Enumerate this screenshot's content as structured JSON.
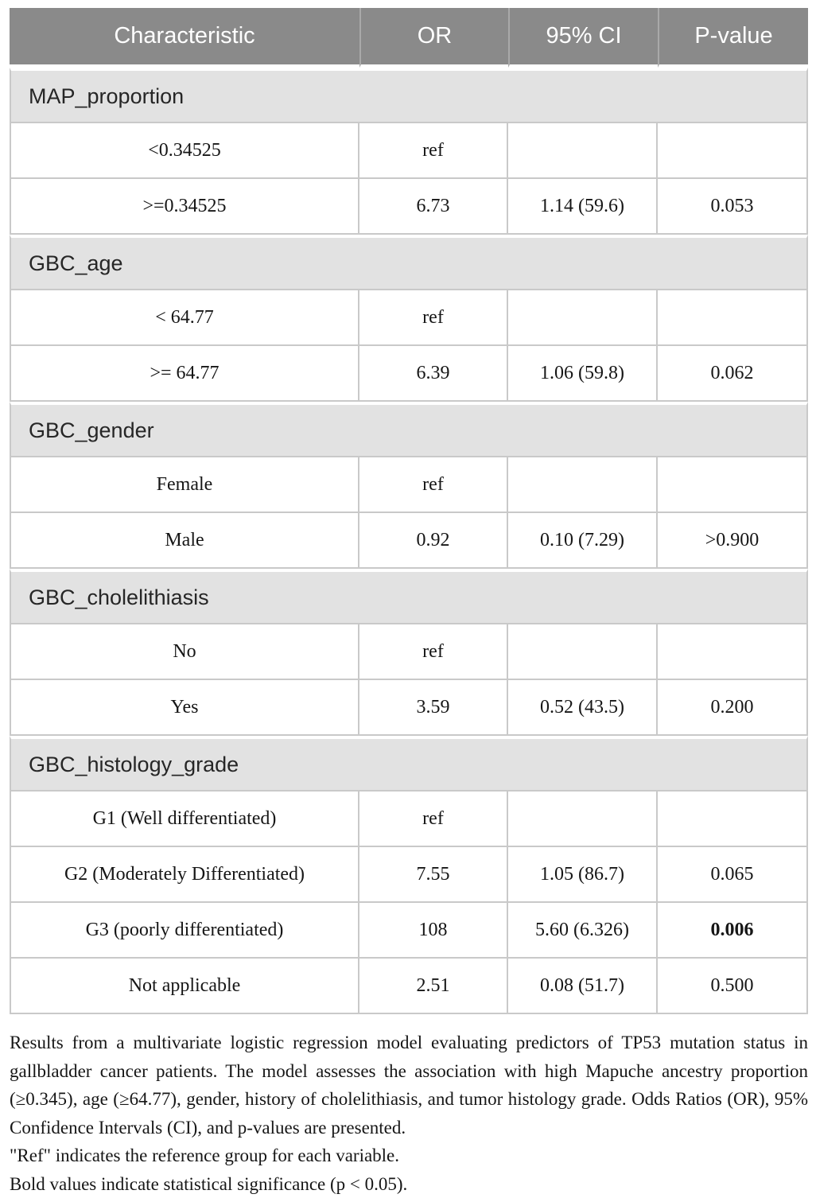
{
  "table": {
    "columns": [
      "Characteristic",
      "OR",
      "95% CI",
      "P-value"
    ],
    "sections": [
      {
        "label": "MAP_proportion",
        "rows": [
          {
            "characteristic": "<0.34525",
            "or": "ref",
            "ci": "",
            "p": "",
            "bold_p": false
          },
          {
            "characteristic": ">=0.34525",
            "or": "6.73",
            "ci": "1.14 (59.6)",
            "p": "0.053",
            "bold_p": false
          }
        ]
      },
      {
        "label": "GBC_age",
        "rows": [
          {
            "characteristic": "< 64.77",
            "or": "ref",
            "ci": "",
            "p": "",
            "bold_p": false
          },
          {
            "characteristic": ">= 64.77",
            "or": "6.39",
            "ci": "1.06 (59.8)",
            "p": "0.062",
            "bold_p": false
          }
        ]
      },
      {
        "label": "GBC_gender",
        "rows": [
          {
            "characteristic": "Female",
            "or": "ref",
            "ci": "",
            "p": "",
            "bold_p": false
          },
          {
            "characteristic": "Male",
            "or": "0.92",
            "ci": "0.10 (7.29)",
            "p": ">0.900",
            "bold_p": false
          }
        ]
      },
      {
        "label": "GBC_cholelithiasis",
        "rows": [
          {
            "characteristic": "No",
            "or": "ref",
            "ci": "",
            "p": "",
            "bold_p": false
          },
          {
            "characteristic": "Yes",
            "or": "3.59",
            "ci": "0.52 (43.5)",
            "p": "0.200",
            "bold_p": false
          }
        ]
      },
      {
        "label": "GBC_histology_grade",
        "rows": [
          {
            "characteristic": "G1 (Well differentiated)",
            "or": "ref",
            "ci": "",
            "p": "",
            "bold_p": false
          },
          {
            "characteristic": "G2 (Moderately Differentiated)",
            "or": "7.55",
            "ci": "1.05 (86.7)",
            "p": "0.065",
            "bold_p": false
          },
          {
            "characteristic": "G3 (poorly differentiated)",
            "or": "108",
            "ci": "5.60 (6.326)",
            "p": "0.006",
            "bold_p": true
          },
          {
            "characteristic": "Not applicable",
            "or": "2.51",
            "ci": "0.08 (51.7)",
            "p": "0.500",
            "bold_p": false
          }
        ]
      }
    ]
  },
  "footnote": {
    "description": "Results from a multivariate logistic regression model evaluating predictors of TP53 mutation status in gallbladder cancer patients. The model assesses the association with high Mapuche ancestry proportion (≥0.345), age (≥64.77), gender, history of cholelithiasis, and tumor histology grade. Odds Ratios (OR), 95% Confidence Intervals (CI), and p-values are presented.",
    "ref_note": "\"Ref\" indicates the reference group for each variable.",
    "bold_note": "Bold values indicate statistical significance (p < 0.05)."
  },
  "colors": {
    "header_bg": "#8a8a8a",
    "header_text": "#ffffff",
    "section_bg": "#e2e2e2",
    "border": "#c9c9c9"
  }
}
